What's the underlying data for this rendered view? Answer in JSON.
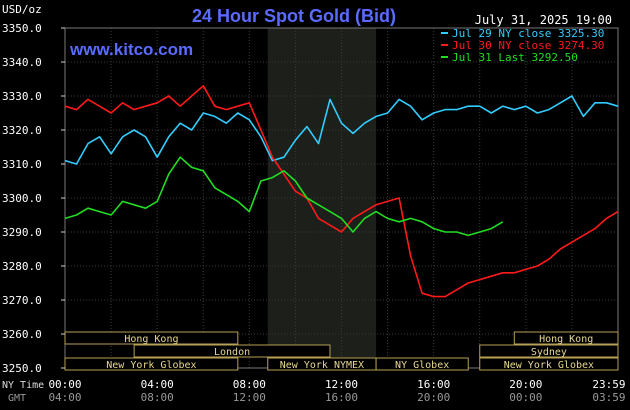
{
  "header": {
    "unit": "USD/oz",
    "title": "24 Hour Spot Gold (Bid)",
    "datetime": "July 31, 2025 19:00",
    "watermark": "www.kitco.com"
  },
  "legend": [
    {
      "name": "Jul 29 NY close 3325.30",
      "color": "#33ccff"
    },
    {
      "name": "Jul 30 NY close 3274.30",
      "color": "#ff1a1a"
    },
    {
      "name": "Jul 31 Last 3292.50",
      "color": "#22dd22"
    }
  ],
  "sessions": [
    {
      "name": "Hong Kong",
      "row": 0,
      "start": 0,
      "end": 7.5
    },
    {
      "name": "Hong Kong",
      "row": 0,
      "start": 19.5,
      "end": 24
    },
    {
      "name": "London",
      "row": 1,
      "start": 3,
      "end": 11.5
    },
    {
      "name": "Sydney",
      "row": 1,
      "start": 18,
      "end": 24
    },
    {
      "name": "New York Globex",
      "row": 2,
      "start": 0,
      "end": 7.5
    },
    {
      "name": "New York NYMEX",
      "row": 2,
      "start": 8.8,
      "end": 13.5
    },
    {
      "name": "NY Globex",
      "row": 2,
      "start": 13.5,
      "end": 17.5
    },
    {
      "name": "New York Globex",
      "row": 2,
      "start": 18,
      "end": 24
    }
  ],
  "axis_labels": {
    "nytime": "NY Time",
    "gmt": "GMT"
  },
  "chart_data": {
    "type": "line",
    "ylim": [
      3250,
      3350
    ],
    "xlim": [
      0,
      24
    ],
    "grid": true,
    "shaded_region": [
      8.8,
      13.5
    ],
    "yticks": [
      {
        "value": 3250,
        "label": "3250.0"
      },
      {
        "value": 3260,
        "label": "3260.0"
      },
      {
        "value": 3270,
        "label": "3270.0"
      },
      {
        "value": 3280,
        "label": "3280.0"
      },
      {
        "value": 3290,
        "label": "3290.0"
      },
      {
        "value": 3300,
        "label": "3300.0"
      },
      {
        "value": 3310,
        "label": "3310.0"
      },
      {
        "value": 3320,
        "label": "3320.0"
      },
      {
        "value": 3330,
        "label": "3330.0"
      },
      {
        "value": 3340,
        "label": "3340.0"
      },
      {
        "value": 3350,
        "label": "3350.0"
      }
    ],
    "xticks": [
      {
        "value": 0,
        "ny": "00:00",
        "gmt": "04:00"
      },
      {
        "value": 4,
        "ny": "04:00",
        "gmt": "08:00"
      },
      {
        "value": 8,
        "ny": "08:00",
        "gmt": "12:00"
      },
      {
        "value": 12,
        "ny": "12:00",
        "gmt": "16:00"
      },
      {
        "value": 16,
        "ny": "16:00",
        "gmt": "20:00"
      },
      {
        "value": 20,
        "ny": "20:00",
        "gmt": "00:00"
      },
      {
        "value": 23.98,
        "ny": "23:59",
        "gmt": "03:59"
      }
    ],
    "series": [
      {
        "name": "Jul 29 NY close 3325.30",
        "color": "#33ccff",
        "x": [
          0,
          0.5,
          1,
          1.5,
          2,
          2.5,
          3,
          3.5,
          4,
          4.5,
          5,
          5.5,
          6,
          6.5,
          7,
          7.5,
          8,
          8.5,
          9,
          9.5,
          10,
          10.5,
          11,
          11.5,
          12,
          12.5,
          13,
          13.5,
          14,
          14.5,
          15,
          15.5,
          16,
          16.5,
          17,
          17.5,
          18,
          18.5,
          19,
          19.5,
          20,
          20.5,
          21,
          21.5,
          22,
          22.5,
          23,
          23.5,
          24
        ],
        "y": [
          3311,
          3310,
          3316,
          3318,
          3313,
          3318,
          3320,
          3318,
          3312,
          3318,
          3322,
          3320,
          3325,
          3324,
          3322,
          3325,
          3323,
          3318,
          3311,
          3312,
          3317,
          3321,
          3316,
          3329,
          3322,
          3319,
          3322,
          3324,
          3325,
          3329,
          3327,
          3323,
          3325,
          3326,
          3326,
          3327,
          3327,
          3325,
          3327,
          3326,
          3327,
          3325,
          3326,
          3328,
          3330,
          3324,
          3328,
          3328,
          3327
        ]
      },
      {
        "name": "Jul 30 NY close 3274.30",
        "color": "#ff1a1a",
        "x": [
          0,
          0.5,
          1,
          1.5,
          2,
          2.5,
          3,
          3.5,
          4,
          4.5,
          5,
          5.5,
          6,
          6.5,
          7,
          7.5,
          8,
          8.5,
          9,
          9.5,
          10,
          10.5,
          11,
          11.5,
          12,
          12.5,
          13,
          13.5,
          14,
          14.5,
          15,
          15.5,
          16,
          16.5,
          17,
          17.5,
          18,
          18.5,
          19,
          19.5,
          20,
          20.5,
          21,
          21.5,
          22,
          22.5,
          23,
          23.5,
          24
        ],
        "y": [
          3327,
          3326,
          3329,
          3327,
          3325,
          3328,
          3326,
          3327,
          3328,
          3330,
          3327,
          3330,
          3333,
          3327,
          3326,
          3327,
          3328,
          3320,
          3312,
          3307,
          3302,
          3300,
          3294,
          3292,
          3290,
          3294,
          3296,
          3298,
          3299,
          3300,
          3283,
          3272,
          3271,
          3271,
          3273,
          3275,
          3276,
          3277,
          3278,
          3278,
          3279,
          3280,
          3282,
          3285,
          3287,
          3289,
          3291,
          3294,
          3296
        ]
      },
      {
        "name": "Jul 31 Last 3292.50",
        "color": "#22dd22",
        "x": [
          0,
          0.5,
          1,
          1.5,
          2,
          2.5,
          3,
          3.5,
          4,
          4.5,
          5,
          5.5,
          6,
          6.5,
          7,
          7.5,
          8,
          8.5,
          9,
          9.5,
          10,
          10.5,
          11,
          11.5,
          12,
          12.5,
          13,
          13.5,
          14,
          14.5,
          15,
          15.5,
          16,
          16.5,
          17,
          17.5,
          18,
          18.5,
          19
        ],
        "y": [
          3294,
          3295,
          3297,
          3296,
          3295,
          3299,
          3298,
          3297,
          3299,
          3307,
          3312,
          3309,
          3308,
          3303,
          3301,
          3299,
          3296,
          3305,
          3306,
          3308,
          3305,
          3300,
          3298,
          3296,
          3294,
          3290,
          3294,
          3296,
          3294,
          3293,
          3294,
          3293,
          3291,
          3290,
          3290,
          3289,
          3290,
          3291,
          3293
        ]
      }
    ]
  }
}
